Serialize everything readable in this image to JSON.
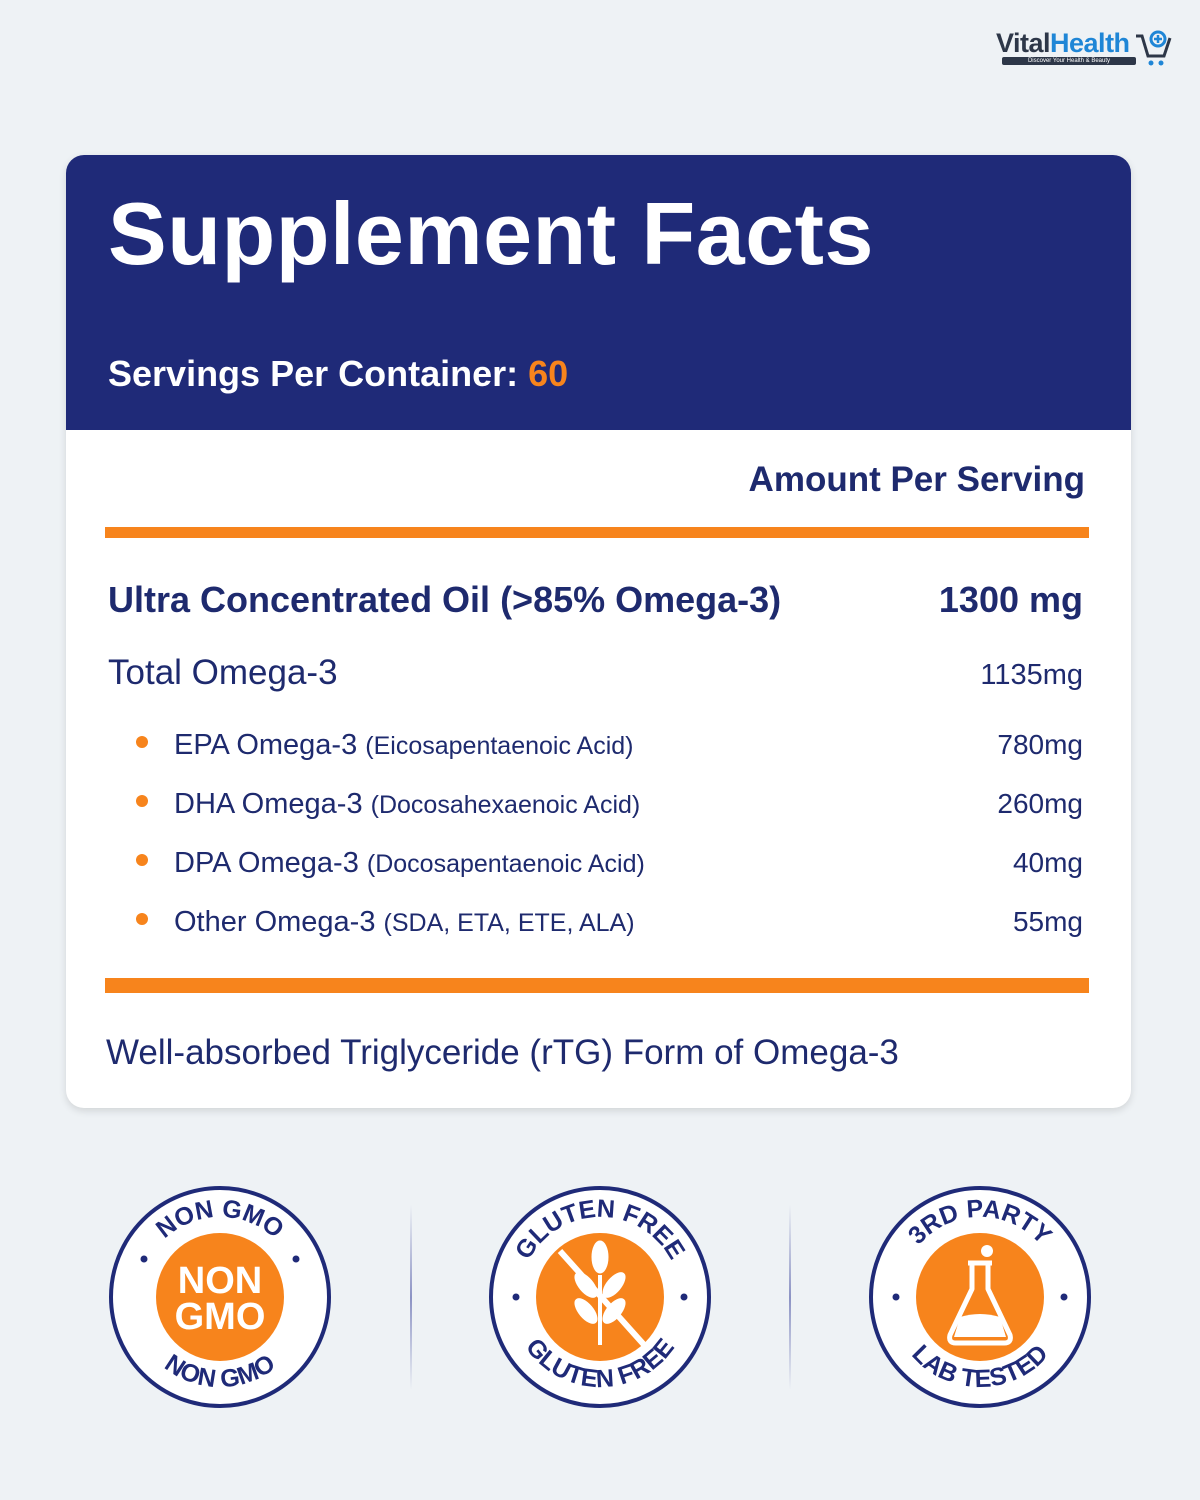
{
  "brand": {
    "name_part1": "Vital",
    "name_part2": "Health",
    "tagline": "Discover Your Health & Beauty"
  },
  "header": {
    "title": "Supplement Facts",
    "servings_label": "Servings Per Container:",
    "servings_value": "60"
  },
  "table": {
    "amount_header": "Amount Per Serving",
    "main": {
      "name": "Ultra Concentrated Oil (>85% Omega-3)",
      "amount": "1300 mg"
    },
    "total": {
      "name": "Total Omega-3",
      "amount": "1135mg"
    },
    "items": [
      {
        "name": "EPA Omega-3",
        "detail": "(Eicosapentaenoic Acid)",
        "amount": "780mg"
      },
      {
        "name": "DHA Omega-3",
        "detail": "(Docosahexaenoic Acid)",
        "amount": "260mg"
      },
      {
        "name": "DPA Omega-3",
        "detail": "(Docosapentaenoic Acid)",
        "amount": "40mg"
      },
      {
        "name": "Other Omega-3",
        "detail": "(SDA, ETA, ETE, ALA)",
        "amount": "55mg"
      }
    ],
    "footer": "Well-absorbed Triglyceride (rTG) Form of Omega-3"
  },
  "badges": [
    {
      "top": "NON GMO",
      "bottom": "NON GMO",
      "center1": "NON",
      "center2": "GMO",
      "icon": "non-gmo"
    },
    {
      "top": "GLUTEN FREE",
      "bottom": "GLUTEN FREE",
      "icon": "wheat-crossed-icon"
    },
    {
      "top": "3RD PARTY",
      "bottom": "LAB TESTED",
      "icon": "flask-icon"
    }
  ],
  "colors": {
    "navy": "#1f2a78",
    "orange": "#f7841c",
    "background": "#eef2f5"
  }
}
